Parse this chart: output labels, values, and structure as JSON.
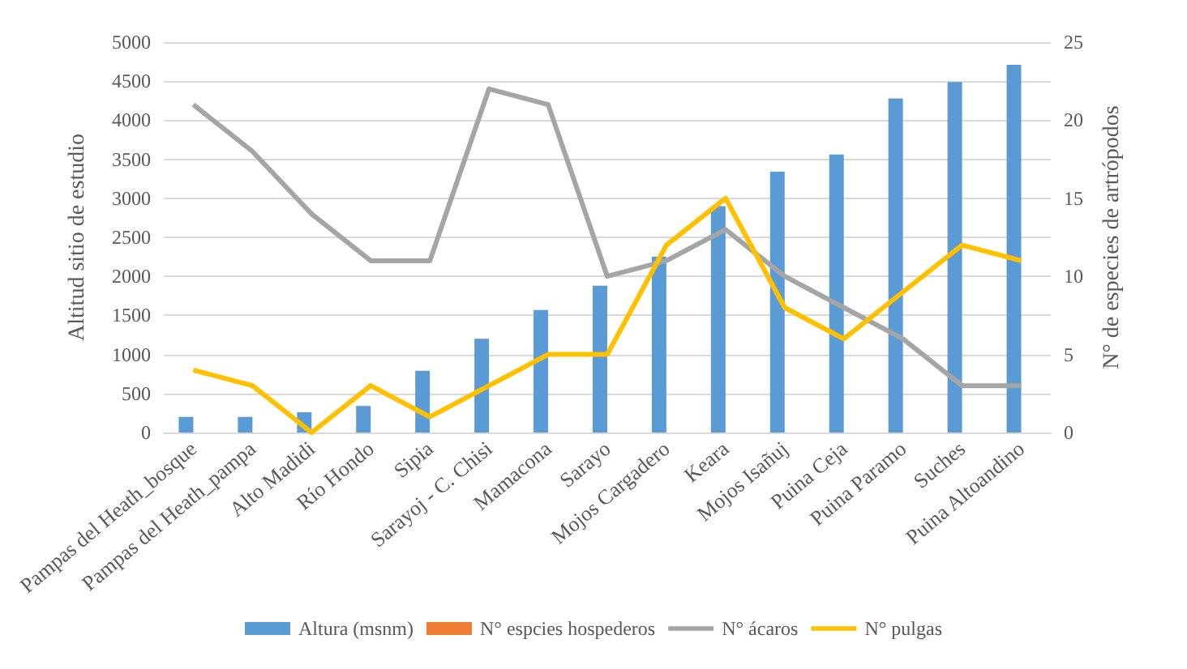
{
  "chart_data": {
    "type": "bar",
    "categories": [
      "Pampas del Heath_bosque",
      "Pampas del Heath_pampa",
      "Alto Madidi",
      "Río Hondo",
      "Sipia",
      "Sarayoj - C. Chisi",
      "Mamacona",
      "Sarayo",
      "Mojos Cargadero",
      "Keara",
      "Mojos Isañuj",
      "Puina Ceja",
      "Puina Paramo",
      "Suches",
      "Puina Altoandino"
    ],
    "series": [
      {
        "name": "Altura (msnm)",
        "color": "#5b9bd5",
        "values": [
          200,
          200,
          260,
          340,
          790,
          1200,
          1570,
          1880,
          2250,
          2900,
          3340,
          3560,
          4280,
          4490,
          4710
        ]
      },
      {
        "name": "N° espcies hospederos",
        "color": "#ed7d31",
        "values": [
          null,
          null,
          null,
          null,
          null,
          null,
          null,
          null,
          null,
          null,
          null,
          null,
          null,
          null,
          null
        ]
      },
      {
        "name": "N° ácaros",
        "type": "line",
        "axis": "y2",
        "color": "#a5a5a5",
        "values": [
          21,
          18,
          14,
          11,
          11,
          22,
          21,
          10,
          11,
          13,
          10,
          8,
          6,
          3,
          3
        ]
      },
      {
        "name": "N° pulgas",
        "type": "line",
        "axis": "y2",
        "color": "#ffc000",
        "values": [
          4,
          3,
          0,
          3,
          1,
          3,
          5,
          5,
          12,
          15,
          8,
          6,
          9,
          12,
          11
        ]
      }
    ],
    "ylabel": "Altitud sitio de estudio",
    "y2label": "N° de especies de artrópodos",
    "ylim": [
      0,
      5000
    ],
    "yticks": [
      0,
      500,
      1000,
      1500,
      2000,
      2500,
      3000,
      3500,
      4000,
      4500,
      5000
    ],
    "y2lim": [
      0,
      25
    ],
    "y2ticks": [
      0,
      5,
      10,
      15,
      20,
      25
    ],
    "grid": "y",
    "legend": "bottom",
    "marker": "none"
  }
}
